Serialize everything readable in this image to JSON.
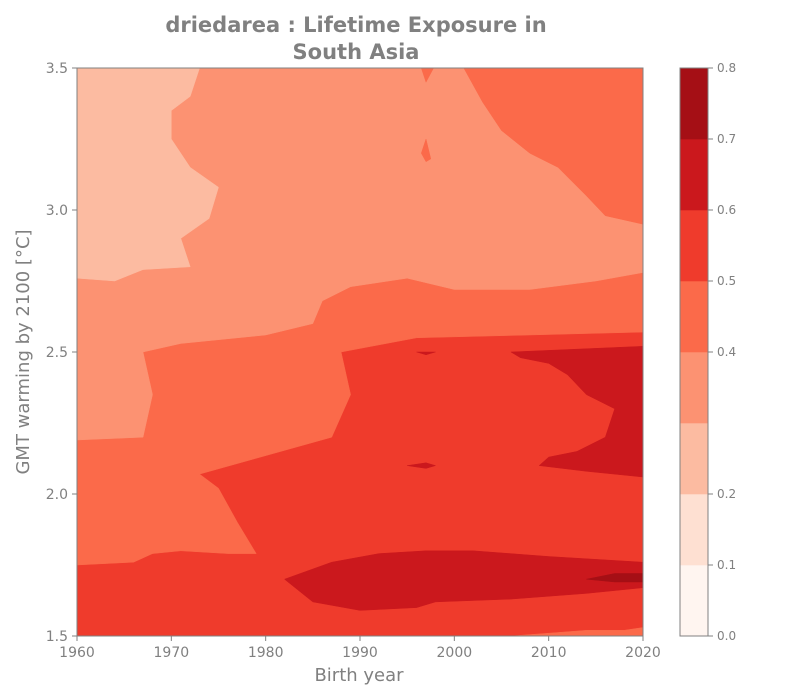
{
  "chart_data": {
    "type": "heatmap",
    "title": "driedarea : Lifetime Exposure in South Asia",
    "title_lines": [
      "driedarea : Lifetime Exposure in",
      "South Asia"
    ],
    "xlabel": "Birth year",
    "ylabel": "GMT warming by 2100 [°C]",
    "xlim": [
      1960,
      2020
    ],
    "ylim": [
      1.5,
      3.5
    ],
    "x_ticks": [
      1960,
      1970,
      1980,
      1990,
      2000,
      2010,
      2020
    ],
    "y_ticks": [
      1.5,
      2.0,
      2.5,
      3.0,
      3.5
    ],
    "y_tick_labels": [
      "1.5",
      "2.0",
      "2.5",
      "3.0",
      "3.5"
    ],
    "colorbar": {
      "levels": [
        0.0,
        0.1,
        0.2,
        0.3,
        0.4,
        0.5,
        0.6,
        0.7,
        0.8
      ],
      "tick_values": [
        0.0,
        0.1,
        0.2,
        0.4,
        0.5,
        0.6,
        0.7,
        0.8
      ],
      "tick_labels": [
        "0.0",
        "0.1",
        "0.2",
        "0.4",
        "0.5",
        "0.6",
        "0.7",
        "0.8"
      ],
      "colors": [
        "#fff5f0",
        "#fee0d2",
        "#fcbba1",
        "#fc9272",
        "#fb6a4a",
        "#ef3b2c",
        "#cb181d",
        "#a50f15",
        "#67000d"
      ]
    },
    "bands": [
      {
        "name": "base",
        "level": 5,
        "range": [
          0.5,
          0.6
        ],
        "poly": [
          [
            1960,
            1.5
          ],
          [
            2020,
            1.5
          ],
          [
            2020,
            3.5
          ],
          [
            1960,
            3.5
          ]
        ]
      },
      {
        "name": "mid",
        "level": 4,
        "range": [
          0.4,
          0.5
        ],
        "poly": [
          [
            1960,
            1.75
          ],
          [
            1966,
            1.76
          ],
          [
            1968,
            1.79
          ],
          [
            1971,
            1.8
          ],
          [
            1976,
            1.79
          ],
          [
            1979,
            1.79
          ],
          [
            1977,
            1.9
          ],
          [
            1975,
            2.02
          ],
          [
            1973,
            2.07
          ],
          [
            1987,
            2.2
          ],
          [
            1989,
            2.35
          ],
          [
            1988,
            2.5
          ],
          [
            1996,
            2.55
          ],
          [
            2008,
            2.56
          ],
          [
            2020,
            2.57
          ],
          [
            2020,
            3.5
          ],
          [
            1960,
            3.5
          ]
        ]
      },
      {
        "name": "upper",
        "level": 3,
        "range": [
          0.3,
          0.4
        ],
        "poly": [
          [
            1960,
            2.19
          ],
          [
            1967,
            2.2
          ],
          [
            1968,
            2.35
          ],
          [
            1967,
            2.5
          ],
          [
            1971,
            2.53
          ],
          [
            1980,
            2.56
          ],
          [
            1985,
            2.6
          ],
          [
            1986,
            2.68
          ],
          [
            1989,
            2.73
          ],
          [
            1995,
            2.76
          ],
          [
            2000,
            2.72
          ],
          [
            2008,
            2.72
          ],
          [
            2015,
            2.75
          ],
          [
            2020,
            2.78
          ],
          [
            2020,
            3.5
          ],
          [
            1960,
            3.5
          ]
        ]
      },
      {
        "name": "top-left",
        "level": 2,
        "range": [
          0.2,
          0.3
        ],
        "poly": [
          [
            1960,
            2.76
          ],
          [
            1964,
            2.75
          ],
          [
            1967,
            2.79
          ],
          [
            1972,
            2.8
          ],
          [
            1971,
            2.9
          ],
          [
            1974,
            2.97
          ],
          [
            1975,
            3.08
          ],
          [
            1972,
            3.15
          ],
          [
            1970,
            3.25
          ],
          [
            1970,
            3.35
          ],
          [
            1972,
            3.4
          ],
          [
            1973,
            3.5
          ],
          [
            1960,
            3.5
          ]
        ]
      },
      {
        "name": "top-right",
        "level": 4,
        "range": [
          0.4,
          0.5
        ],
        "poly": [
          [
            2001,
            3.5
          ],
          [
            2020,
            3.5
          ],
          [
            2020,
            2.95
          ],
          [
            2016,
            2.98
          ],
          [
            2014,
            3.05
          ],
          [
            2011,
            3.15
          ],
          [
            2008,
            3.2
          ],
          [
            2005,
            3.28
          ],
          [
            2003,
            3.38
          ]
        ]
      },
      {
        "name": "dark-mid",
        "level": 6,
        "range": [
          0.6,
          0.7
        ],
        "poly": [
          [
            2006,
            2.5
          ],
          [
            2020,
            2.52
          ],
          [
            2020,
            2.06
          ],
          [
            2014,
            2.08
          ],
          [
            2009,
            2.1
          ],
          [
            2010,
            2.13
          ],
          [
            2013,
            2.15
          ],
          [
            2016,
            2.2
          ],
          [
            2017,
            2.3
          ],
          [
            2014,
            2.35
          ],
          [
            2012,
            2.42
          ],
          [
            2010,
            2.46
          ],
          [
            2007,
            2.48
          ]
        ]
      },
      {
        "name": "dark-low",
        "level": 6,
        "range": [
          0.6,
          0.7
        ],
        "poly": [
          [
            1982,
            1.7
          ],
          [
            1987,
            1.76
          ],
          [
            1992,
            1.79
          ],
          [
            1997,
            1.8
          ],
          [
            2002,
            1.8
          ],
          [
            2010,
            1.78
          ],
          [
            2020,
            1.76
          ],
          [
            2020,
            1.67
          ],
          [
            2014,
            1.65
          ],
          [
            2006,
            1.63
          ],
          [
            1998,
            1.62
          ],
          [
            1996,
            1.6
          ],
          [
            1990,
            1.59
          ],
          [
            1985,
            1.62
          ]
        ]
      },
      {
        "name": "darkest-low",
        "level": 7,
        "range": [
          0.7,
          0.8
        ],
        "poly": [
          [
            2014,
            1.7
          ],
          [
            2017,
            1.72
          ],
          [
            2020,
            1.72
          ],
          [
            2020,
            1.69
          ],
          [
            2017,
            1.69
          ]
        ]
      },
      {
        "name": "bottom-edge",
        "level": 4,
        "range": [
          0.4,
          0.5
        ],
        "poly": [
          [
            2006,
            1.5
          ],
          [
            2010,
            1.51
          ],
          [
            2014,
            1.52
          ],
          [
            2018,
            1.52
          ],
          [
            2020,
            1.53
          ],
          [
            2020,
            1.5
          ]
        ]
      },
      {
        "name": "tiny-dark-a",
        "level": 6,
        "range": [
          0.6,
          0.7
        ],
        "poly": [
          [
            1996,
            2.5
          ],
          [
            1997,
            2.49
          ],
          [
            1998,
            2.5
          ]
        ]
      },
      {
        "name": "tiny-dark-b",
        "level": 6,
        "range": [
          0.6,
          0.7
        ],
        "poly": [
          [
            1995,
            2.1
          ],
          [
            1997,
            2.09
          ],
          [
            1998,
            2.1
          ],
          [
            1997,
            2.11
          ]
        ]
      },
      {
        "name": "spike-top",
        "level": 4,
        "range": [
          0.4,
          0.5
        ],
        "poly": [
          [
            1996.5,
            3.5
          ],
          [
            1997,
            3.45
          ],
          [
            1997.8,
            3.5
          ]
        ]
      },
      {
        "name": "spike-mid",
        "level": 4,
        "range": [
          0.4,
          0.5
        ],
        "poly": [
          [
            1996.5,
            3.2
          ],
          [
            1997,
            3.25
          ],
          [
            1997.5,
            3.18
          ],
          [
            1997,
            3.17
          ]
        ]
      }
    ]
  }
}
